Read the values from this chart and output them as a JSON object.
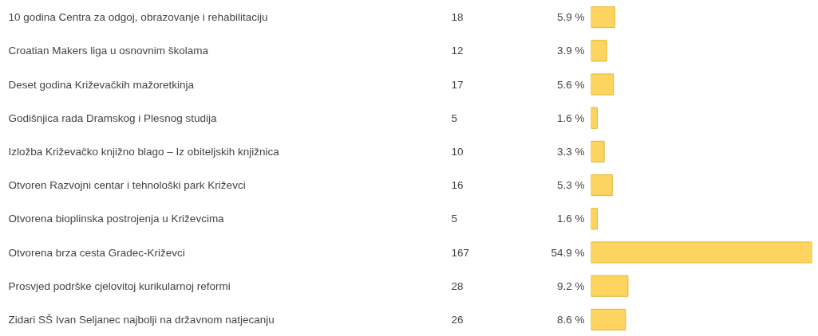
{
  "chart_data": {
    "type": "bar",
    "orientation": "horizontal",
    "categories": [
      "10 godina Centra za odgoj, obrazovanje i rehabilitaciju",
      "Croatian Makers liga u osnovnim školama",
      "Deset godina Križevačkih mažoretkinja",
      "Godišnjica rada Dramskog i Plesnog studija",
      "Izložba Križevačko knjižno blago – Iz obiteljskih knjižnica",
      "Otvoren Razvojni centar i tehnološki park Križevci",
      "Otvorena bioplinska postrojenja u Križevcima",
      "Otvorena brza cesta Gradec-Križevci",
      "Prosvjed podrške cjelovitoj kurikularnoj reformi",
      "Zidari SŠ Ivan Seljanec najbolji na državnom natjecanju"
    ],
    "values": [
      5.9,
      3.9,
      5.6,
      1.6,
      3.3,
      5.3,
      1.6,
      54.9,
      9.2,
      8.6
    ],
    "value_labels": [
      "5.9 %",
      "3.9 %",
      "5.6 %",
      "1.6 %",
      "3.3 %",
      "5.3 %",
      "1.6 %",
      "54.9 %",
      "9.2 %",
      "8.6 %"
    ],
    "annotations": [
      "18",
      "12",
      "17",
      "5",
      "10",
      "16",
      "5",
      "167",
      "28",
      "26"
    ],
    "color": "#fcd45f"
  }
}
